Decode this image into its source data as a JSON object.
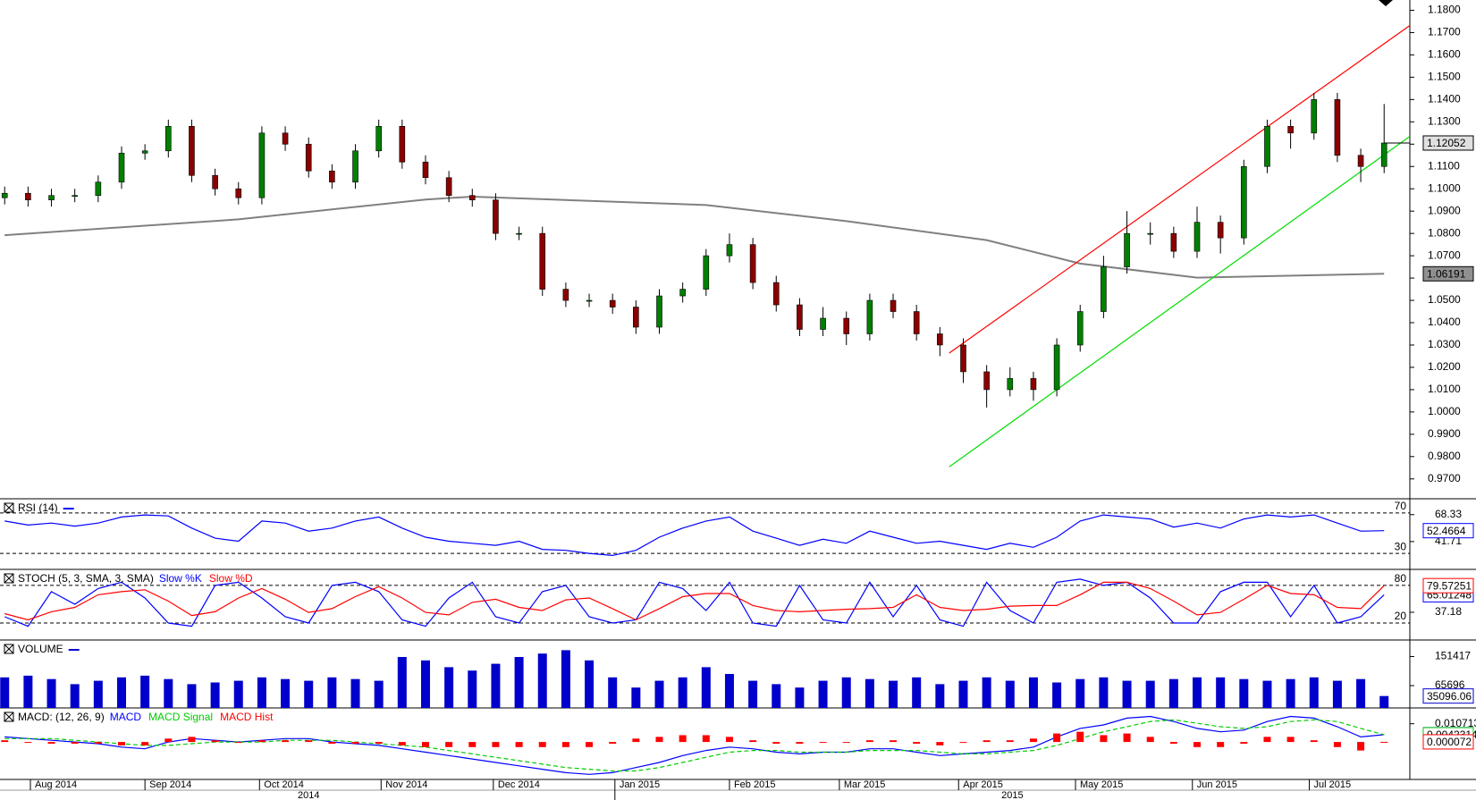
{
  "chart_data": [
    {
      "type": "candlestick",
      "up_color": "#008000",
      "down_color": "#8b0000",
      "open": [
        1.096,
        1.098,
        1.095,
        1.097,
        1.097,
        1.103,
        1.116,
        1.117,
        1.128,
        1.106,
        1.1,
        1.096,
        1.125,
        1.12,
        1.108,
        1.103,
        1.117,
        1.128,
        1.112,
        1.105,
        1.097,
        1.095,
        1.08,
        1.08,
        1.055,
        1.05,
        1.05,
        1.047,
        1.038,
        1.052,
        1.055,
        1.07,
        1.075,
        1.058,
        1.048,
        1.037,
        1.042,
        1.035,
        1.05,
        1.045,
        1.035,
        1.03,
        1.018,
        1.01,
        1.015,
        1.01,
        1.03,
        1.045,
        1.065,
        1.08,
        1.08,
        1.072,
        1.085,
        1.078,
        1.11,
        1.128,
        1.125,
        1.14,
        1.115,
        1.11
      ],
      "high": [
        1.101,
        1.101,
        1.1,
        1.1,
        1.106,
        1.119,
        1.12,
        1.131,
        1.131,
        1.109,
        1.103,
        1.128,
        1.128,
        1.123,
        1.111,
        1.12,
        1.131,
        1.131,
        1.115,
        1.108,
        1.1,
        1.098,
        1.083,
        1.083,
        1.058,
        1.053,
        1.053,
        1.05,
        1.055,
        1.058,
        1.073,
        1.08,
        1.078,
        1.061,
        1.051,
        1.047,
        1.045,
        1.053,
        1.053,
        1.048,
        1.038,
        1.033,
        1.021,
        1.02,
        1.018,
        1.033,
        1.048,
        1.07,
        1.09,
        1.085,
        1.083,
        1.092,
        1.088,
        1.113,
        1.131,
        1.131,
        1.143,
        1.143,
        1.118,
        1.138
      ],
      "low": [
        1.093,
        1.092,
        1.092,
        1.094,
        1.094,
        1.1,
        1.113,
        1.114,
        1.103,
        1.097,
        1.093,
        1.093,
        1.117,
        1.105,
        1.1,
        1.1,
        1.114,
        1.109,
        1.102,
        1.094,
        1.092,
        1.077,
        1.077,
        1.052,
        1.047,
        1.047,
        1.044,
        1.035,
        1.035,
        1.049,
        1.052,
        1.067,
        1.055,
        1.045,
        1.034,
        1.034,
        1.03,
        1.032,
        1.042,
        1.032,
        1.025,
        1.013,
        1.002,
        1.007,
        1.005,
        1.007,
        1.027,
        1.042,
        1.062,
        1.075,
        1.069,
        1.069,
        1.071,
        1.075,
        1.107,
        1.118,
        1.122,
        1.112,
        1.103,
        1.107
      ],
      "close": [
        1.098,
        1.095,
        1.097,
        1.097,
        1.103,
        1.116,
        1.117,
        1.128,
        1.106,
        1.1,
        1.096,
        1.125,
        1.12,
        1.108,
        1.103,
        1.117,
        1.128,
        1.112,
        1.105,
        1.097,
        1.095,
        1.08,
        1.08,
        1.055,
        1.05,
        1.05,
        1.047,
        1.038,
        1.052,
        1.055,
        1.07,
        1.075,
        1.058,
        1.048,
        1.037,
        1.042,
        1.035,
        1.05,
        1.045,
        1.035,
        1.03,
        1.018,
        1.01,
        1.015,
        1.01,
        1.03,
        1.045,
        1.065,
        1.08,
        1.08,
        1.072,
        1.085,
        1.078,
        1.11,
        1.128,
        1.125,
        1.14,
        1.115,
        1.11,
        1.12052
      ],
      "moving_average": {
        "color": "#808080",
        "x": [
          0,
          10,
          18,
          20,
          30,
          36,
          42,
          46,
          51,
          59
        ],
        "values": [
          1.0792,
          1.0863,
          1.0952,
          1.0965,
          1.0927,
          1.0855,
          1.077,
          1.0665,
          1.0602,
          1.06191
        ]
      },
      "trend_lines": [
        {
          "color": "#ff0000",
          "x": [
            40.4,
            60.1
          ],
          "values": [
            1.0264,
            1.1732
          ]
        },
        {
          "color": "#00dd00",
          "x": [
            40.4,
            60.1
          ],
          "values": [
            0.9754,
            1.1235
          ]
        }
      ],
      "ylim": [
        0.9611,
        1.1846
      ],
      "yticks": [
        {
          "value": 0.97,
          "label": "0.9700"
        },
        {
          "value": 0.98,
          "label": "0.9800"
        },
        {
          "value": 0.99,
          "label": "0.9900"
        },
        {
          "value": 1.0,
          "label": "1.0000"
        },
        {
          "value": 1.01,
          "label": "1.0100"
        },
        {
          "value": 1.02,
          "label": "1.0200"
        },
        {
          "value": 1.03,
          "label": "1.0300"
        },
        {
          "value": 1.04,
          "label": "1.0400"
        },
        {
          "value": 1.05,
          "label": "1.0500"
        },
        {
          "value": 1.06,
          "label": "1.0600"
        },
        {
          "value": 1.07,
          "label": "1.0700"
        },
        {
          "value": 1.08,
          "label": "1.0800"
        },
        {
          "value": 1.09,
          "label": "1.0900"
        },
        {
          "value": 1.1,
          "label": "1.1000"
        },
        {
          "value": 1.11,
          "label": "1.1100"
        },
        {
          "value": 1.12,
          "label": "1.1200"
        },
        {
          "value": 1.13,
          "label": "1.1300"
        },
        {
          "value": 1.14,
          "label": "1.1400"
        },
        {
          "value": 1.15,
          "label": "1.1500"
        },
        {
          "value": 1.16,
          "label": "1.1600"
        },
        {
          "value": 1.17,
          "label": "1.1700"
        },
        {
          "value": 1.18,
          "label": "1.1800"
        }
      ],
      "xlim": [
        -0.2,
        60.1
      ],
      "xticks": [
        {
          "value": 1.1,
          "label": "Aug 2014"
        },
        {
          "value": 6.0,
          "label": "Sep 2014"
        },
        {
          "value": 10.9,
          "label": "Oct 2014"
        },
        {
          "value": 16.1,
          "label": "Nov 2014"
        },
        {
          "value": 20.9,
          "label": "Dec 2014"
        },
        {
          "value": 26.1,
          "label": "Jan 2015"
        },
        {
          "value": 31.0,
          "label": "Feb 2015"
        },
        {
          "value": 35.7,
          "label": "Mar 2015"
        },
        {
          "value": 40.8,
          "label": "Apr 2015"
        },
        {
          "value": 45.8,
          "label": "May 2015"
        },
        {
          "value": 50.8,
          "label": "Jun 2015"
        },
        {
          "value": 55.8,
          "label": "Jul 2015"
        }
      ],
      "year_ticks": [
        {
          "value": 13,
          "label": "2014"
        },
        {
          "value": 43.1,
          "label": "2015"
        }
      ]
    },
    {
      "type": "line",
      "title": "RSI (14)",
      "ylim": [
        14.2,
        84
      ],
      "levels": [
        30,
        70
      ],
      "yticks": [
        41.71,
        68.33
      ],
      "series": [
        {
          "name": null,
          "color": "#0000ff",
          "values": [
            62,
            58,
            60,
            57,
            60,
            66,
            68,
            67,
            55,
            45,
            42,
            62,
            60,
            52,
            55,
            62,
            66,
            55,
            46,
            42,
            40,
            38,
            42,
            34,
            33,
            30,
            28,
            33,
            46,
            55,
            62,
            66,
            52,
            45,
            38,
            44,
            40,
            52,
            46,
            40,
            42,
            38,
            34,
            40,
            36,
            46,
            62,
            68,
            66,
            64,
            56,
            60,
            55,
            64,
            68,
            66,
            68,
            60,
            52,
            52.4664
          ]
        }
      ]
    },
    {
      "type": "line",
      "title": "STOCH (5, 3, SMA, 3, SMA)",
      "ylim": [
        -7,
        105.5
      ],
      "levels": [
        20,
        80
      ],
      "yticks": [
        37.18
      ],
      "series": [
        {
          "name": "Slow %K",
          "color": "#0000ff",
          "values": [
            30,
            15,
            70,
            50,
            75,
            85,
            60,
            20,
            15,
            80,
            85,
            60,
            30,
            20,
            80,
            85,
            70,
            25,
            15,
            60,
            85,
            30,
            20,
            70,
            80,
            30,
            20,
            25,
            85,
            75,
            40,
            85,
            20,
            15,
            80,
            25,
            20,
            85,
            30,
            80,
            25,
            15,
            85,
            40,
            20,
            85,
            90,
            80,
            85,
            60,
            20,
            20,
            70,
            85,
            85,
            30,
            80,
            20,
            30,
            65.01248
          ]
        },
        {
          "name": "Slow %D",
          "color": "#ff0000",
          "values": [
            35,
            25,
            38,
            45,
            65,
            70,
            73,
            55,
            32,
            38,
            60,
            75,
            58,
            37,
            43,
            62,
            78,
            60,
            37,
            33,
            53,
            58,
            45,
            40,
            57,
            60,
            43,
            25,
            43,
            62,
            67,
            67,
            48,
            40,
            38,
            40,
            42,
            43,
            45,
            65,
            45,
            40,
            42,
            47,
            48,
            48,
            65,
            85,
            85,
            75,
            55,
            33,
            37,
            58,
            80,
            67,
            65,
            45,
            43,
            79.57251
          ]
        }
      ]
    },
    {
      "type": "bar",
      "title": "VOLUME",
      "ylim": [
        0,
        200000
      ],
      "yticks": [
        65696,
        151417
      ],
      "series": [
        {
          "name": null,
          "color": "#0000cc",
          "values": [
            90000,
            95000,
            85000,
            70000,
            80000,
            90000,
            95000,
            85000,
            70000,
            75000,
            80000,
            90000,
            85000,
            80000,
            90000,
            85000,
            80000,
            150000,
            140000,
            120000,
            110000,
            130000,
            150000,
            160000,
            170000,
            140000,
            90000,
            60000,
            80000,
            90000,
            120000,
            100000,
            80000,
            70000,
            60000,
            80000,
            90000,
            85000,
            80000,
            90000,
            70000,
            80000,
            90000,
            80000,
            90000,
            75000,
            85000,
            90000,
            80000,
            80000,
            85000,
            90000,
            90000,
            85000,
            80000,
            85000,
            90000,
            80000,
            85000,
            35096.06
          ]
        }
      ]
    },
    {
      "type": "line",
      "title": "MACD: (12, 26, 9)",
      "ylim": [
        -0.022,
        0.02
      ],
      "yticks": [
        0.0107133
      ],
      "series": [
        {
          "name": "MACD",
          "color": "#0000ff",
          "values": [
            0.003,
            0.002,
            0.001,
            0,
            -0.001,
            -0.003,
            -0.004,
            0,
            0.002,
            0.001,
            0,
            0.001,
            0.002,
            0.002,
            0,
            -0.001,
            -0.002,
            -0.004,
            -0.006,
            -0.008,
            -0.01,
            -0.012,
            -0.014,
            -0.016,
            -0.018,
            -0.019,
            -0.018,
            -0.015,
            -0.012,
            -0.008,
            -0.005,
            -0.003,
            -0.004,
            -0.006,
            -0.007,
            -0.006,
            -0.006,
            -0.004,
            -0.004,
            -0.006,
            -0.008,
            -0.007,
            -0.006,
            -0.005,
            -0.003,
            0.003,
            0.008,
            0.01,
            0.014,
            0.015,
            0.012,
            0.008,
            0.006,
            0.007,
            0.012,
            0.015,
            0.014,
            0.009,
            0.003,
            0.0043
          ]
        },
        {
          "name": "MACD Signal",
          "color": "#00cc00",
          "dashed": true,
          "values": [
            0.002,
            0.002,
            0.002,
            0.001,
            0,
            -0.001,
            -0.002,
            -0.002,
            -0.001,
            0,
            0,
            0,
            0.001,
            0.001,
            0.001,
            0,
            -0.001,
            -0.002,
            -0.003,
            -0.005,
            -0.007,
            -0.009,
            -0.011,
            -0.013,
            -0.015,
            -0.016,
            -0.017,
            -0.017,
            -0.015,
            -0.012,
            -0.009,
            -0.006,
            -0.005,
            -0.005,
            -0.006,
            -0.006,
            -0.006,
            -0.005,
            -0.005,
            -0.005,
            -0.006,
            -0.007,
            -0.007,
            -0.006,
            -0.005,
            -0.002,
            0.002,
            0.006,
            0.009,
            0.012,
            0.013,
            0.011,
            0.009,
            0.008,
            0.009,
            0.012,
            0.013,
            0.012,
            0.008,
            0.0042314
          ]
        },
        {
          "name": "MACD Hist",
          "color": "#ff0000",
          "bars": true,
          "values": [
            0.001,
            0,
            -0.001,
            -0.001,
            -0.001,
            -0.002,
            -0.002,
            0.002,
            0.003,
            0.001,
            0,
            0.001,
            0.001,
            0.001,
            -0.001,
            -0.001,
            -0.001,
            -0.002,
            -0.003,
            -0.003,
            -0.003,
            -0.003,
            -0.003,
            -0.003,
            -0.003,
            -0.003,
            -0.001,
            0.002,
            0.003,
            0.004,
            0.004,
            0.003,
            0.001,
            -0.001,
            -0.001,
            0,
            0,
            0.001,
            0.001,
            -0.001,
            -0.002,
            0,
            0.001,
            0.001,
            0.002,
            0.005,
            0.006,
            0.004,
            0.005,
            0.003,
            -0.001,
            -0.003,
            -0.003,
            -0.001,
            0.003,
            0.003,
            0.001,
            -0.003,
            -0.005,
            7.2e-05
          ]
        }
      ]
    }
  ]
}
